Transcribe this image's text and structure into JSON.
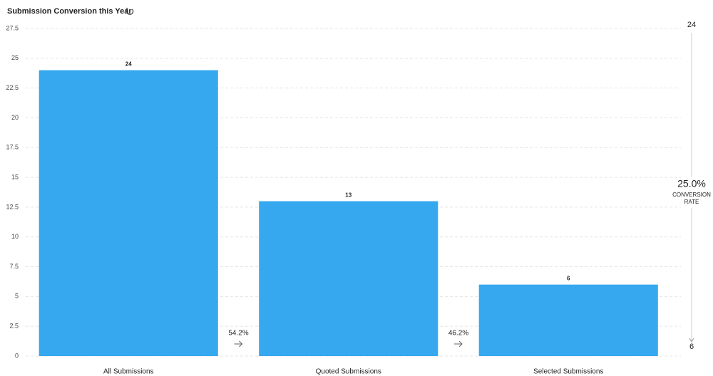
{
  "chart_data": {
    "type": "bar",
    "title": "Submission Conversion this Year",
    "categories": [
      "All Submissions",
      "Quoted Submissions",
      "Selected Submissions"
    ],
    "values": [
      24,
      13,
      6
    ],
    "color": "#36a8f0",
    "ylim": [
      0,
      27.5
    ],
    "yticks": [
      0,
      2.5,
      5,
      7.5,
      10,
      12.5,
      15,
      17.5,
      20,
      22.5,
      25,
      27.5
    ],
    "grid": true,
    "step_conversions": [
      "54.2%",
      "46.2%"
    ],
    "funnel_range": [
      24,
      6
    ],
    "conversion_rate": "25.0%",
    "conversion_label": [
      "CONVERSION",
      "RATE"
    ]
  }
}
